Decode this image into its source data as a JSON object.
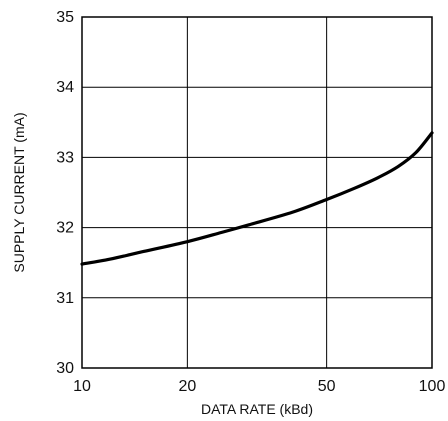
{
  "chart_data": {
    "type": "line",
    "title": "",
    "xlabel": "DATA RATE (kBd)",
    "ylabel": "SUPPLY CURRENT (mA)",
    "x_scale": "log",
    "xlim": [
      10,
      100
    ],
    "ylim": [
      30,
      35
    ],
    "x_ticks": [
      10,
      20,
      50,
      100
    ],
    "x_tick_labels": [
      "10",
      "20",
      "50",
      "100"
    ],
    "y_ticks": [
      30,
      31,
      32,
      33,
      34,
      35
    ],
    "y_tick_labels": [
      "30",
      "31",
      "32",
      "33",
      "34",
      "35"
    ],
    "grid": true,
    "legend": "none",
    "series": [
      {
        "color": "#000000",
        "x": [
          10,
          12,
          15,
          20,
          25,
          30,
          40,
          50,
          60,
          70,
          80,
          90,
          100
        ],
        "y": [
          31.48,
          31.55,
          31.66,
          31.8,
          31.93,
          32.04,
          32.22,
          32.4,
          32.56,
          32.71,
          32.87,
          33.07,
          33.35
        ]
      }
    ]
  }
}
